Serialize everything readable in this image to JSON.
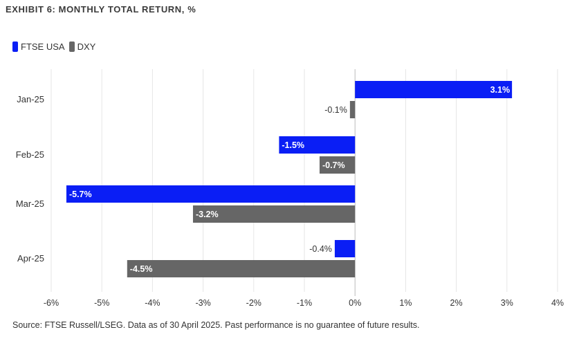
{
  "header": {
    "title": "EXHIBIT 6: MONTHLY TOTAL RETURN, %"
  },
  "footer": {
    "source": "Source: FTSE Russell/LSEG. Data as of 30 April 2025. Past performance is no guarantee of future results."
  },
  "colors": {
    "ftse_usa": "#0a1ef5",
    "dxy": "#666666",
    "grid": "#e6e6e6",
    "axis": "#bbbbbb"
  },
  "chart_data": {
    "type": "bar",
    "orientation": "horizontal",
    "title": "EXHIBIT 6: MONTHLY TOTAL RETURN, %",
    "xlabel": "",
    "ylabel": "",
    "categories": [
      "Jan-25",
      "Feb-25",
      "Mar-25",
      "Apr-25"
    ],
    "series": [
      {
        "name": "FTSE USA",
        "values": [
          3.1,
          -1.5,
          -5.7,
          -0.4
        ],
        "labels": [
          "3.1%",
          "-1.5%",
          "-5.7%",
          "-0.4%"
        ]
      },
      {
        "name": "DXY",
        "values": [
          -0.1,
          -0.7,
          -3.2,
          -4.5
        ],
        "labels": [
          "-0.1%",
          "-0.7%",
          "-3.2%",
          "-4.5%"
        ]
      }
    ],
    "xlim": [
      -6,
      4
    ],
    "xticks": [
      -6,
      -5,
      -4,
      -3,
      -2,
      -1,
      0,
      1,
      2,
      3,
      4
    ],
    "xtick_labels": [
      "-6%",
      "-5%",
      "-4%",
      "-3%",
      "-2%",
      "-1%",
      "0%",
      "1%",
      "2%",
      "3%",
      "4%"
    ],
    "grid": "vertical",
    "legend": "top-left"
  }
}
